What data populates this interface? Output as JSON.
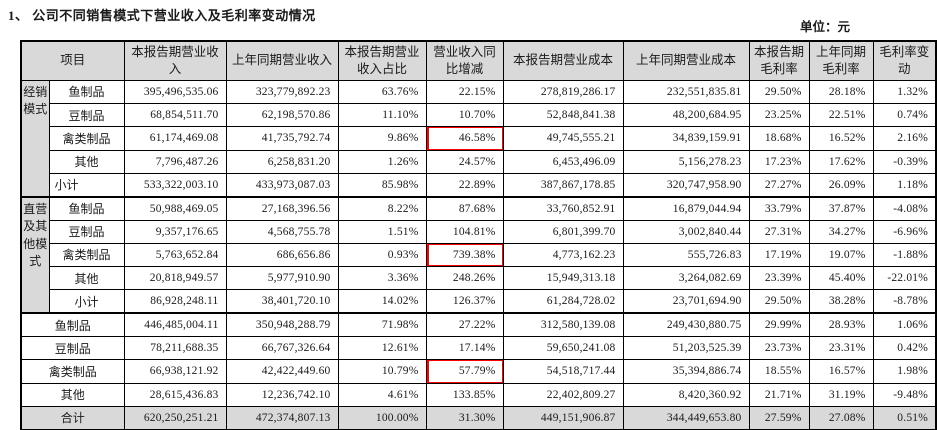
{
  "page": {
    "title": "1、 公司不同销售模式下营业收入及毛利率变动情况",
    "unit_label": "单位：元"
  },
  "colors": {
    "header_bg": "#d9d9d9",
    "total_row_bg": "#d9d9d9",
    "highlight_box": "#fe0000",
    "border": "#000000"
  },
  "table": {
    "headers": [
      "项目",
      "本报告期营业收入",
      "上年同期营业收入",
      "本报告期营业收入占比",
      "营业收入同比增减",
      "本报告期营业成本",
      "上年同期营业成本",
      "本报告期毛利率",
      "上年同期毛利率",
      "毛利率变动"
    ],
    "groups": [
      {
        "name": "经销模式",
        "rows": [
          {
            "label": "鱼制品",
            "values": [
              "395,496,535.06",
              "323,779,892.23",
              "63.76%",
              "22.15%",
              "278,819,286.17",
              "232,551,835.81",
              "29.50%",
              "28.18%",
              "1.32%"
            ]
          },
          {
            "label": "豆制品",
            "values": [
              "68,854,511.70",
              "62,198,570.86",
              "11.10%",
              "10.70%",
              "52,848,841.38",
              "48,200,684.95",
              "23.25%",
              "22.51%",
              "0.74%"
            ]
          },
          {
            "label": "禽类制品",
            "highlight_col": 3,
            "values": [
              "61,174,469.08",
              "41,735,792.74",
              "9.86%",
              "46.58%",
              "49,745,555.21",
              "34,839,159.91",
              "18.68%",
              "16.52%",
              "2.16%"
            ]
          },
          {
            "label": "其他",
            "values": [
              "7,796,487.26",
              "6,258,831.20",
              "1.26%",
              "24.57%",
              "6,453,496.09",
              "5,156,278.23",
              "17.23%",
              "17.62%",
              "-0.39%"
            ]
          },
          {
            "label": "小计",
            "values": [
              "533,322,003.10",
              "433,973,087.03",
              "85.98%",
              "22.89%",
              "387,867,178.85",
              "320,747,958.90",
              "27.27%",
              "26.09%",
              "1.18%"
            ]
          }
        ]
      },
      {
        "name": "直营及其他模式",
        "rows": [
          {
            "label": "鱼制品",
            "values": [
              "50,988,469.05",
              "27,168,396.56",
              "8.22%",
              "87.68%",
              "33,760,852.91",
              "16,879,044.94",
              "33.79%",
              "37.87%",
              "-4.08%"
            ]
          },
          {
            "label": "豆制品",
            "values": [
              "9,357,176.65",
              "4,568,755.78",
              "1.51%",
              "104.81%",
              "6,801,399.70",
              "3,002,840.44",
              "27.31%",
              "34.27%",
              "-6.96%"
            ]
          },
          {
            "label": "禽类制品",
            "highlight_col": 3,
            "values": [
              "5,763,652.84",
              "686,656.86",
              "0.93%",
              "739.38%",
              "4,773,162.23",
              "555,726.83",
              "17.19%",
              "19.07%",
              "-1.88%"
            ]
          },
          {
            "label": "其他",
            "values": [
              "20,818,949.57",
              "5,977,910.90",
              "3.36%",
              "248.26%",
              "15,949,313.18",
              "3,264,082.69",
              "23.39%",
              "45.40%",
              "-22.01%"
            ]
          },
          {
            "label": "小计",
            "values": [
              "86,928,248.11",
              "38,401,720.10",
              "14.02%",
              "126.37%",
              "61,284,728.02",
              "23,701,694.90",
              "29.50%",
              "38.28%",
              "-8.78%"
            ]
          }
        ]
      }
    ],
    "summary_rows": [
      {
        "label": "鱼制品",
        "values": [
          "446,485,004.11",
          "350,948,288.79",
          "71.98%",
          "27.22%",
          "312,580,139.08",
          "249,430,880.75",
          "29.99%",
          "28.93%",
          "1.06%"
        ]
      },
      {
        "label": "豆制品",
        "values": [
          "78,211,688.35",
          "66,767,326.64",
          "12.61%",
          "17.14%",
          "59,650,241.08",
          "51,203,525.39",
          "23.73%",
          "23.31%",
          "0.42%"
        ]
      },
      {
        "label": "禽类制品",
        "highlight_col": 3,
        "values": [
          "66,938,121.92",
          "42,422,449.60",
          "10.79%",
          "57.79%",
          "54,518,717.44",
          "35,394,886.74",
          "18.55%",
          "16.57%",
          "1.98%"
        ]
      },
      {
        "label": "其他",
        "values": [
          "28,615,436.83",
          "12,236,742.10",
          "4.61%",
          "133.85%",
          "22,402,809.27",
          "8,420,360.92",
          "21.71%",
          "31.19%",
          "-9.48%"
        ]
      },
      {
        "label": "合计",
        "emphasis": true,
        "values": [
          "620,250,251.21",
          "472,374,807.13",
          "100.00%",
          "31.30%",
          "449,151,906.87",
          "344,449,653.80",
          "27.59%",
          "27.08%",
          "0.51%"
        ]
      }
    ]
  }
}
